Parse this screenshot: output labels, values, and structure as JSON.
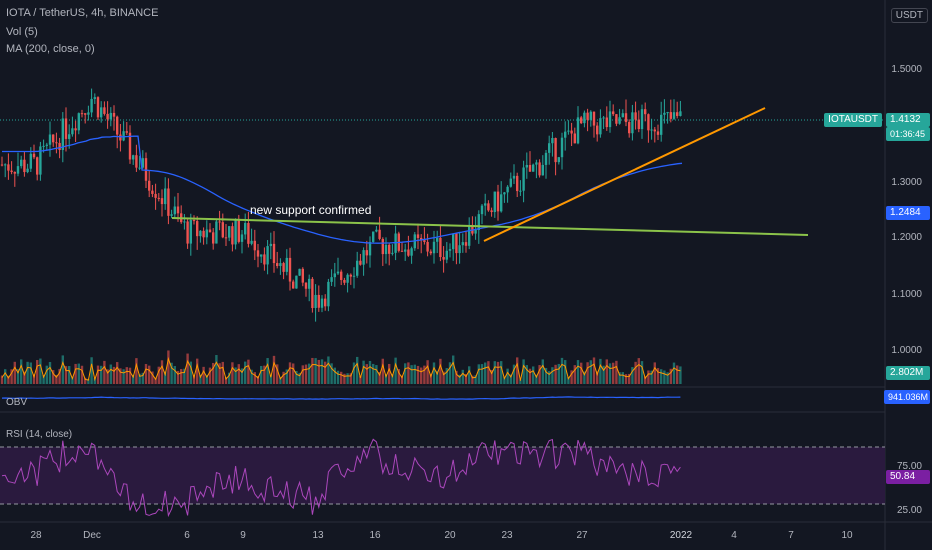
{
  "header": {
    "symbol_line": "IOTA / TetherUS, 4h, BINANCE",
    "vol_line": "Vol (5)",
    "ma_line": "MA (200, close, 0)",
    "obv_label": "OBV",
    "rsi_label": "RSI (14, close)",
    "unit": "USDT"
  },
  "price_badges": {
    "symbol": "IOTAUSDT",
    "last_price": "1.4132",
    "countdown": "01:36:45",
    "ma_value": "1.2484",
    "volume_value": "2.802M",
    "obv_value": "941.036M",
    "rsi_value": "50.84"
  },
  "annotation": "new support confirmed",
  "colors": {
    "background": "#131722",
    "up": "#26a69a",
    "down": "#ef5350",
    "ma": "#2962ff",
    "support_line": "#8bc34a",
    "trend_line": "#ff9800",
    "rsi": "#9c27b0",
    "rsi_band": "#2a1a3e",
    "obv": "#2962ff",
    "vol_ma": "#ff9800"
  },
  "chart_data": {
    "type": "line",
    "price_axis": {
      "ticks": [
        "1.5000",
        "1.4000",
        "1.3000",
        "1.2000",
        "1.1000",
        "1.0000"
      ],
      "ylim": [
        0.93,
        1.62
      ]
    },
    "x_axis": {
      "ticks": [
        "28",
        "Dec",
        "6",
        "9",
        "13",
        "16",
        "20",
        "23",
        "27",
        "2022",
        "4",
        "7",
        "10"
      ]
    },
    "price_series": {
      "name": "IOTAUSDT",
      "x": [
        "28",
        "Dec",
        "6",
        "9",
        "13",
        "16",
        "20",
        "23",
        "27",
        "2022"
      ],
      "close": [
        1.33,
        1.45,
        1.21,
        1.21,
        1.09,
        1.19,
        1.18,
        1.28,
        1.4,
        1.41
      ]
    },
    "ma_series": {
      "name": "MA (200, close, 0)",
      "last": 1.2484
    },
    "trend_lines": [
      {
        "name": "new support confirmed",
        "from": [
          1.233,
          "6"
        ],
        "to": [
          1.212,
          "10"
        ]
      },
      {
        "name": "ascending trend",
        "from": [
          1.198,
          "23"
        ],
        "to": [
          1.447,
          "7"
        ]
      }
    ],
    "rsi": {
      "ticks": [
        "75.00",
        "25.00"
      ],
      "upper": 70,
      "lower": 30,
      "last": 50.84
    },
    "volume": {
      "last": "2.802M"
    },
    "obv": {
      "last": "941.036M"
    },
    "grid": false
  }
}
